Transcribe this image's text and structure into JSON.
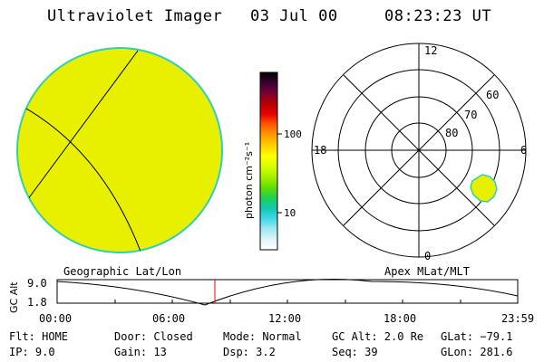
{
  "header": {
    "title": "Ultraviolet Imager",
    "date": "03 Jul 00",
    "time": "08:23:23 UT"
  },
  "colorbar": {
    "unit_label": "photon cm⁻²s⁻¹",
    "ticks": [
      "100",
      "10"
    ],
    "colors": [
      "#000000",
      "#3b0033",
      "#7a0033",
      "#b80000",
      "#e80000",
      "#ff5a00",
      "#ff9a00",
      "#ffd000",
      "#ffff00",
      "#d8ff00",
      "#a8f000",
      "#60e000",
      "#20d050",
      "#10c8b0",
      "#40d8e8",
      "#a0e8f0",
      "#e0f4f8",
      "#ffffff"
    ]
  },
  "images": {
    "left_label": "Geographic Lat/Lon",
    "right_label": "Apex MLat/MLT",
    "disk_color": "#e8f000",
    "disk_edge_color": "#30d0b0",
    "blob_color": "#e8f000"
  },
  "polar": {
    "mlt_labels": {
      "top": "12",
      "left": "18",
      "right": "6",
      "bottom": "0"
    },
    "lat_labels": [
      "60",
      "70",
      "80"
    ]
  },
  "altitude_plot": {
    "axis_label": "GC Alt",
    "y_ticks": [
      "9.0",
      "1.8"
    ],
    "x_ticks": [
      "00:00",
      "06:00",
      "12:00",
      "18:00",
      "23:59"
    ],
    "marker_color": "#ff0000"
  },
  "footer": {
    "rows": [
      [
        "Flt: HOME",
        "Door: Closed",
        "Mode: Normal",
        "GC Alt: 2.0 Re",
        "GLat: −79.1"
      ],
      [
        "IP:  9.0",
        "Gain: 13",
        "Dsp:    3.2",
        "Seq: 39",
        "GLon: 281.6"
      ]
    ]
  }
}
